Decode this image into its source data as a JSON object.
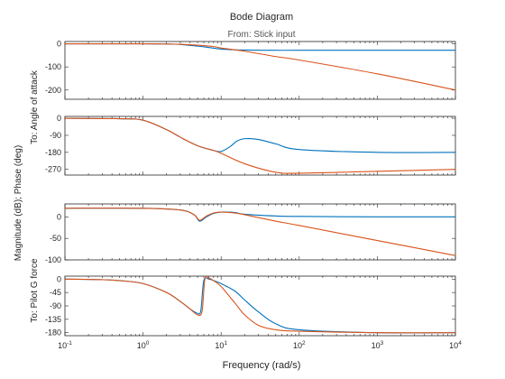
{
  "figure": {
    "title": "Bode Diagram",
    "subtitle": "From: Stick input",
    "xlabel": "Frequency (rad/s)",
    "ylabel": "Magnitude (dB); Phase (deg)",
    "output_labels": [
      "To: Angle of attack",
      "To: Pilot G force"
    ]
  },
  "chart_data": {
    "type": "line",
    "title": "Bode Diagram",
    "subtitle": "From: Stick input",
    "xlabel": "Frequency (rad/s)",
    "ylabel": "Magnitude (dB); Phase (deg)",
    "x_scale": "log",
    "xlim": [
      0.1,
      10000
    ],
    "x_ticks": [
      {
        "base": "10",
        "exp": "-1"
      },
      {
        "base": "10",
        "exp": "0"
      },
      {
        "base": "10",
        "exp": "1"
      },
      {
        "base": "10",
        "exp": "2"
      },
      {
        "base": "10",
        "exp": "3"
      },
      {
        "base": "10",
        "exp": "4"
      }
    ],
    "colors": {
      "blue": "#0072BD",
      "orange": "#D95319"
    },
    "panels": [
      {
        "id": "alpha-magnitude",
        "output": "To: Angle of attack",
        "ylim": [
          -240,
          10
        ],
        "y_ticks": [
          "0",
          "-100",
          "-200"
        ],
        "series": [
          {
            "color": "blue",
            "x": [
              0.1,
              1,
              2,
              3,
              5,
              7,
              10,
              15,
              20,
              50,
              100,
              1000,
              10000
            ],
            "y": [
              0,
              0,
              -1,
              -3,
              -10,
              -16,
              -23,
              -26,
              -27,
              -28,
              -28,
              -28,
              -28
            ]
          },
          {
            "color": "orange",
            "x": [
              0.1,
              1,
              2,
              3,
              5,
              8,
              10,
              20,
              50,
              100,
              1000,
              10000
            ],
            "y": [
              0,
              0,
              -1,
              -2,
              -6,
              -12,
              -18,
              -32,
              -55,
              -70,
              -130,
              -200
            ]
          }
        ]
      },
      {
        "id": "alpha-phase",
        "output": "To: Angle of attack",
        "ylim": [
          -300,
          10
        ],
        "y_ticks": [
          "0",
          "-90",
          "-180",
          "-270"
        ],
        "series": [
          {
            "color": "blue",
            "x": [
              0.1,
              0.5,
              1,
              2,
              3,
              5,
              8,
              10,
              13,
              16,
              20,
              30,
              50,
              100,
              1000,
              10000
            ],
            "y": [
              0,
              -2,
              -10,
              -60,
              -100,
              -145,
              -170,
              -175,
              -150,
              -120,
              -108,
              -112,
              -135,
              -165,
              -180,
              -180
            ]
          },
          {
            "color": "orange",
            "x": [
              0.1,
              0.5,
              1,
              2,
              3,
              5,
              8,
              10,
              20,
              50,
              100,
              1000,
              10000
            ],
            "y": [
              0,
              -2,
              -10,
              -60,
              -100,
              -145,
              -170,
              -185,
              -240,
              -285,
              -290,
              -280,
              -270
            ]
          }
        ]
      },
      {
        "id": "g-magnitude",
        "output": "To: Pilot G force",
        "ylim": [
          -100,
          30
        ],
        "y_ticks": [
          "0",
          "-50",
          "-100"
        ],
        "series": [
          {
            "color": "blue",
            "x": [
              0.1,
              1,
              3,
              4.5,
              5.3,
              6.5,
              8,
              10,
              15,
              20,
              50,
              100,
              1000,
              10000
            ],
            "y": [
              20,
              20,
              16,
              5,
              -10,
              0,
              8,
              11,
              10,
              6,
              2,
              1,
              0,
              0
            ]
          },
          {
            "color": "orange",
            "x": [
              0.1,
              1,
              3,
              4.5,
              5.3,
              6.5,
              8,
              10,
              15,
              20,
              50,
              100,
              1000,
              10000
            ],
            "y": [
              20,
              20,
              16,
              5,
              -8,
              2,
              9,
              11,
              9,
              5,
              -10,
              -20,
              -55,
              -90
            ]
          }
        ]
      },
      {
        "id": "g-phase",
        "output": "To: Pilot G force",
        "ylim": [
          -190,
          10
        ],
        "y_ticks": [
          "0",
          "-45",
          "-90",
          "-135",
          "-180"
        ],
        "series": [
          {
            "color": "blue",
            "x": [
              0.1,
              0.3,
              0.5,
              1,
              2,
              3,
              4,
              5,
              5.5,
              6,
              7,
              8,
              10,
              15,
              20,
              30,
              50,
              100,
              1000,
              10000
            ],
            "y": [
              0,
              -2,
              -5,
              -15,
              -45,
              -75,
              -100,
              -115,
              -105,
              -5,
              0,
              -5,
              -15,
              -40,
              -70,
              -110,
              -150,
              -170,
              -180,
              -180
            ]
          },
          {
            "color": "orange",
            "x": [
              0.1,
              0.3,
              0.5,
              1,
              2,
              3,
              4,
              5,
              5.7,
              6.2,
              7,
              8,
              10,
              15,
              20,
              30,
              50,
              100,
              1000,
              10000
            ],
            "y": [
              0,
              -2,
              -5,
              -15,
              -45,
              -75,
              -100,
              -120,
              -108,
              0,
              3,
              -5,
              -25,
              -80,
              -120,
              -155,
              -170,
              -175,
              -180,
              -180
            ]
          }
        ]
      }
    ]
  }
}
